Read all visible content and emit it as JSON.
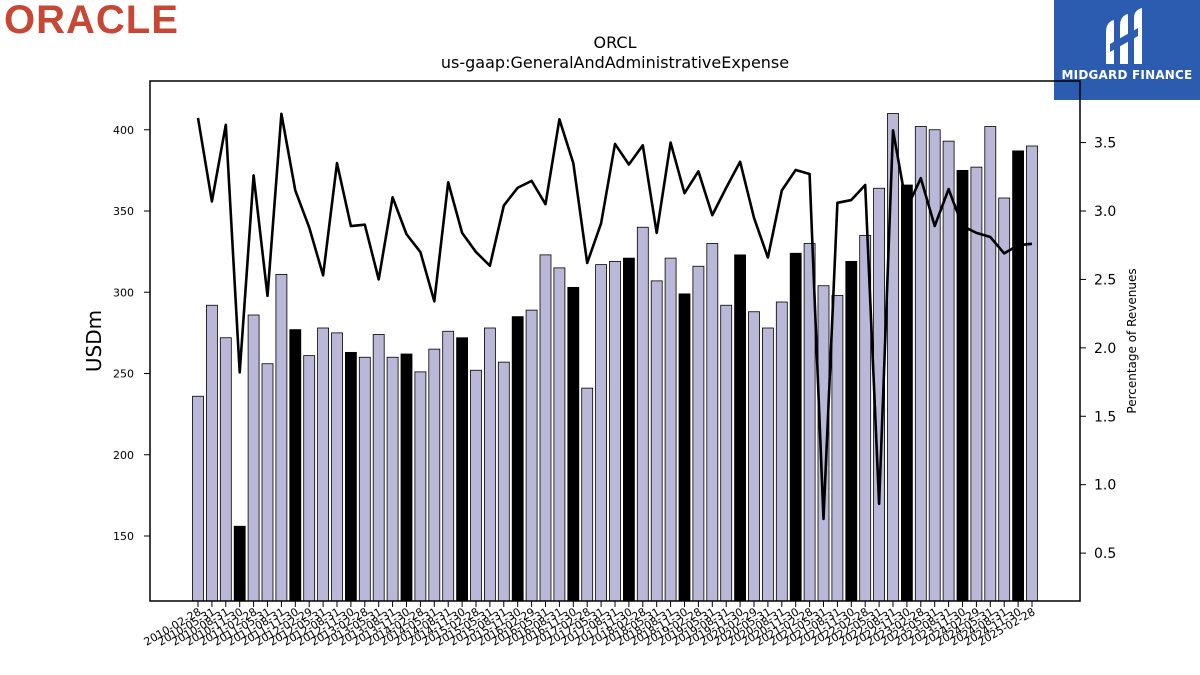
{
  "logo": {
    "text": "ORACLE",
    "color": "#c74634"
  },
  "badge": {
    "text": "MIDGARD FINANCE",
    "bg": "#2b5cb0"
  },
  "chart_data": {
    "type": "bar",
    "title": "ORCL",
    "subtitle": "us-gaap:GeneralAndAdministrativeExpense",
    "ylabel": "USDm",
    "y2label": "Percentage of Revenues",
    "ylim": [
      110,
      430
    ],
    "y2lim": [
      0.15,
      3.95
    ],
    "yticks": [
      150,
      200,
      250,
      300,
      350,
      400
    ],
    "y2ticks": [
      0.5,
      1.0,
      1.5,
      2.0,
      2.5,
      3.0,
      3.5
    ],
    "y2tick_labels": [
      "0.5",
      "1.0",
      "1.5",
      "2.0",
      "2.5",
      "3.0",
      "3.5"
    ],
    "x_tick_labels": [
      "2010-02-28",
      "2010-05-31",
      "2010-08-31",
      "2010-11-30",
      "2011-02-28",
      "2011-05-31",
      "2011-08-31",
      "2011-11-30",
      "2012-02-29",
      "2012-05-31",
      "2012-08-31",
      "2012-11-30",
      "2013-02-28",
      "2013-05-31",
      "2013-08-31",
      "2013-11-30",
      "2014-02-28",
      "2014-05-31",
      "2014-08-31",
      "2014-11-30",
      "2015-02-28",
      "2015-05-31",
      "2015-08-31",
      "2015-11-30",
      "2016-02-29",
      "2016-05-31",
      "2016-08-31",
      "2016-11-30",
      "2017-02-28",
      "2017-05-31",
      "2017-08-31",
      "2017-11-30",
      "2018-02-28",
      "2018-05-31",
      "2018-08-31",
      "2018-11-30",
      "2019-02-28",
      "2019-05-31",
      "2019-08-31",
      "2019-11-30",
      "2020-02-29",
      "2020-05-31",
      "2020-08-31",
      "2020-11-30",
      "2021-02-28",
      "2021-05-31",
      "2021-08-31",
      "2021-11-30",
      "2022-02-28",
      "2022-05-31",
      "2022-08-31",
      "2022-11-30",
      "2023-02-28",
      "2023-05-31",
      "2023-08-31",
      "2023-11-30",
      "2024-02-29",
      "2024-05-31",
      "2024-08-31",
      "2024-11-30",
      "2025-02-28"
    ],
    "series": [
      {
        "name": "USDm",
        "type": "bar",
        "values": [
          236,
          292,
          272,
          156,
          286,
          256,
          311,
          277,
          261,
          278,
          275,
          263,
          260,
          274,
          260,
          262,
          251,
          265,
          276,
          272,
          252,
          278,
          257,
          285,
          289,
          323,
          315,
          303,
          241,
          317,
          319,
          321,
          340,
          307,
          321,
          299,
          316,
          330,
          292,
          323,
          288,
          278,
          294,
          324,
          330,
          304,
          298,
          319,
          335,
          364,
          410,
          366,
          402,
          400,
          393,
          375,
          377,
          402,
          358,
          387,
          390
        ],
        "highlight_every": 4,
        "highlight_offset": 3,
        "colors": {
          "normal": "#b9b8d9",
          "highlight": "#000000",
          "edge": "#000000"
        }
      },
      {
        "name": "Percentage of Revenues",
        "type": "line",
        "axis": "right",
        "color": "#000000",
        "values": [
          3.68,
          3.07,
          3.63,
          1.82,
          3.26,
          2.38,
          3.71,
          3.15,
          2.88,
          2.53,
          3.35,
          2.89,
          2.9,
          2.5,
          3.1,
          2.83,
          2.7,
          2.34,
          3.21,
          2.84,
          2.7,
          2.6,
          3.04,
          3.17,
          3.22,
          3.05,
          3.67,
          3.35,
          2.62,
          2.91,
          3.49,
          3.34,
          3.48,
          2.84,
          3.5,
          3.13,
          3.29,
          2.97,
          3.17,
          3.36,
          2.95,
          2.66,
          3.15,
          3.3,
          3.27,
          0.75,
          3.06,
          3.08,
          3.19,
          0.86,
          3.59,
          3.02,
          3.24,
          2.89,
          3.16,
          2.89,
          2.84,
          2.81,
          2.69,
          2.75,
          2.76
        ]
      }
    ],
    "grid": false,
    "legend": "none"
  }
}
